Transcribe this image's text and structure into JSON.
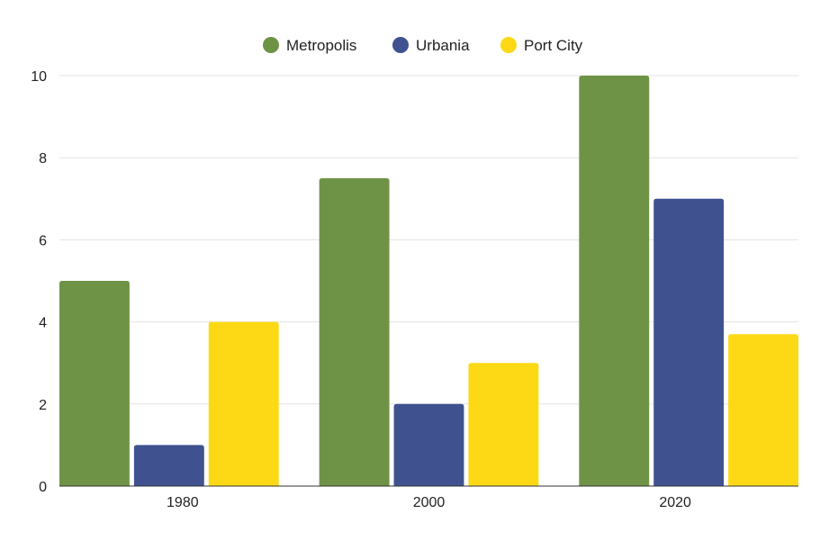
{
  "chart_data": {
    "type": "bar",
    "title": "",
    "xlabel": "",
    "ylabel": "",
    "categories": [
      "1980",
      "2000",
      "2020"
    ],
    "series": [
      {
        "name": "Metropolis",
        "color": "#6f9346",
        "values": [
          5,
          7.5,
          10
        ]
      },
      {
        "name": "Urbania",
        "color": "#3f528f",
        "values": [
          1,
          2,
          7
        ]
      },
      {
        "name": "Port City",
        "color": "#fdd915",
        "values": [
          4,
          3,
          3.7
        ]
      }
    ],
    "ylim": [
      0,
      10
    ],
    "yticks": [
      0,
      2,
      4,
      6,
      8,
      10
    ],
    "grid": true,
    "legend_position": "top-center"
  }
}
